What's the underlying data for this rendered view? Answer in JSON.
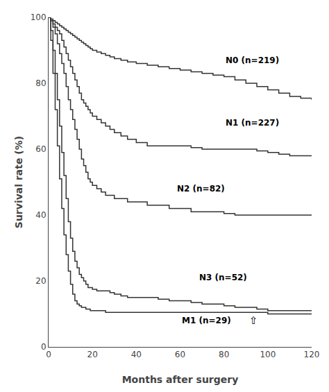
{
  "chart_data": {
    "type": "step",
    "xlabel": "Months after surgery",
    "ylabel": "Survival rate (%)",
    "xlim": [
      0,
      120
    ],
    "ylim": [
      0,
      100
    ],
    "xticks": [
      0,
      20,
      40,
      60,
      80,
      100,
      120
    ],
    "yticks": [
      0,
      20,
      40,
      60,
      80,
      100
    ],
    "grid": false,
    "x": [
      0,
      1,
      2,
      3,
      4,
      5,
      6,
      7,
      8,
      9,
      10,
      11,
      12,
      13,
      14,
      15,
      16,
      17,
      18,
      19,
      20,
      22,
      24,
      26,
      28,
      30,
      33,
      36,
      40,
      45,
      50,
      55,
      60,
      65,
      70,
      75,
      80,
      85,
      90,
      95,
      100,
      105,
      110,
      115,
      120
    ],
    "series": [
      {
        "name": "N0 (n=219)",
        "color": "#333333",
        "values": [
          100,
          99.5,
          99,
          98.5,
          98,
          97.5,
          97,
          96.5,
          96,
          95.5,
          95,
          94.5,
          94,
          93.5,
          93,
          92.5,
          92,
          91.5,
          91,
          90.5,
          90,
          89.5,
          89,
          88.5,
          88,
          87.5,
          87,
          86.5,
          86,
          85.5,
          85,
          84.5,
          84,
          83.5,
          83,
          82.5,
          82,
          81,
          80,
          79,
          78,
          77,
          76,
          75.5,
          75
        ]
      },
      {
        "name": "N1 (n=227)",
        "color": "#333333",
        "values": [
          100,
          99,
          98,
          97,
          96,
          95,
          93,
          91,
          89,
          87,
          85,
          83,
          81,
          79,
          77,
          75,
          74,
          73,
          72,
          71,
          70,
          69,
          68,
          67,
          66,
          65,
          64,
          63,
          62,
          61,
          61,
          61,
          61,
          60.5,
          60,
          60,
          60,
          60,
          60,
          59.5,
          59,
          58.5,
          58,
          58,
          58
        ]
      },
      {
        "name": "N2 (n=82)",
        "color": "#333333",
        "values": [
          100,
          99,
          97,
          95,
          92,
          89,
          86,
          83,
          79,
          75,
          72,
          69,
          66,
          63,
          60,
          57,
          55,
          53,
          51,
          50,
          49,
          48,
          47,
          46,
          46,
          45,
          45,
          44,
          44,
          43,
          43,
          42,
          42,
          41,
          41,
          41,
          40.5,
          40,
          40,
          40,
          40,
          40,
          40,
          40,
          40
        ]
      },
      {
        "name": "N3 (n=52)",
        "color": "#333333",
        "values": [
          100,
          96,
          90,
          83,
          75,
          67,
          59,
          52,
          45,
          38,
          33,
          29,
          26,
          24,
          22,
          21,
          20,
          19,
          18,
          18,
          17.5,
          17,
          17,
          17,
          16.5,
          16,
          15.5,
          15,
          15,
          15,
          14.5,
          14,
          14,
          13.5,
          13,
          13,
          12.5,
          12,
          12,
          11.5,
          11,
          11,
          11,
          11,
          11
        ]
      },
      {
        "name": "M1 (n=29)",
        "color": "#333333",
        "values": [
          100,
          93,
          83,
          72,
          61,
          51,
          42,
          34,
          28,
          23,
          19,
          16,
          14,
          13,
          12.5,
          12,
          12,
          11.5,
          11.5,
          11,
          11,
          11,
          11,
          10.5,
          10.5,
          10.5,
          10.5,
          10.5,
          10.5,
          10.5,
          10.5,
          10.5,
          10.5,
          10.5,
          10.5,
          10.5,
          10.5,
          10.5,
          10.5,
          10.5,
          10,
          10,
          10,
          10,
          10
        ]
      }
    ],
    "annotations": [
      {
        "text": "N0 (n=219)",
        "x": 80,
        "y": 87
      },
      {
        "text": "N1 (n=227)",
        "x": 80,
        "y": 68
      },
      {
        "text": "N2 (n=82)",
        "x": 58,
        "y": 48
      },
      {
        "text": "N3 (n=52)",
        "x": 68,
        "y": 21
      },
      {
        "text": "M1 (n=29)",
        "x": 60,
        "y": 8
      },
      {
        "text": "⇧",
        "x": 91,
        "y": 8
      }
    ]
  }
}
